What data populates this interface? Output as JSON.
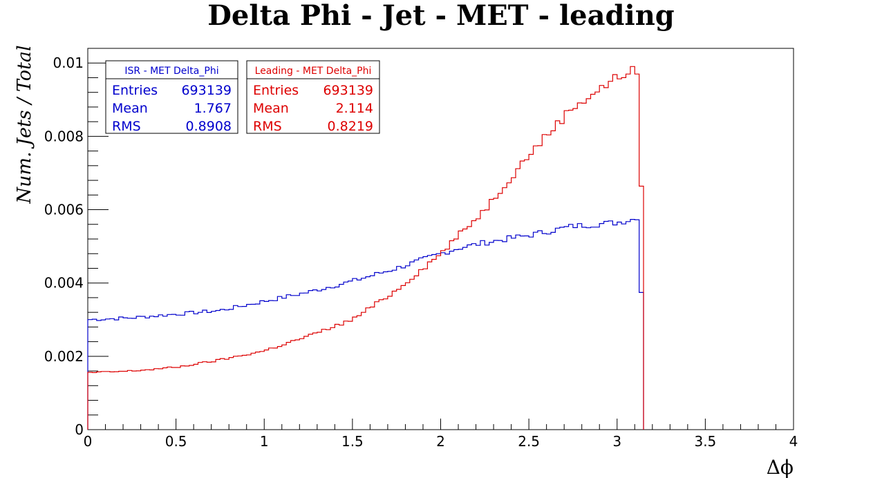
{
  "chart_data": {
    "type": "line",
    "title": "Delta Phi - Jet - MET - leading",
    "xlabel": "Δϕ",
    "ylabel": "Num. Jets / Total",
    "xlim": [
      0,
      4
    ],
    "ylim": [
      0,
      0.0104
    ],
    "x_ticks": [
      "0",
      "0.5",
      "1",
      "1.5",
      "2",
      "2.5",
      "3",
      "3.5",
      "4"
    ],
    "y_ticks": [
      "0",
      "0.002",
      "0.004",
      "0.006",
      "0.008",
      "0.01"
    ],
    "grid": false,
    "histogram": {
      "bin_width": 0.025,
      "x_end": 3.15
    },
    "series": [
      {
        "name": "ISR - MET Delta_Phi",
        "color": "#0000cc",
        "x": [
          0,
          0.25,
          0.5,
          0.75,
          1.0,
          1.25,
          1.5,
          1.75,
          2.0,
          2.1,
          2.25,
          2.5,
          2.75,
          3.0,
          3.1,
          3.125,
          3.14
        ],
        "values": [
          0.003,
          0.00305,
          0.00315,
          0.00325,
          0.0035,
          0.00375,
          0.00405,
          0.0044,
          0.0048,
          0.00495,
          0.0051,
          0.0053,
          0.00555,
          0.00565,
          0.00575,
          0.0057,
          0.00335
        ]
      },
      {
        "name": "Leading - MET Delta_Phi",
        "color": "#dd0000",
        "x": [
          0,
          0.25,
          0.5,
          0.75,
          1.0,
          1.25,
          1.5,
          1.75,
          2.0,
          2.25,
          2.5,
          2.75,
          3.0,
          3.05,
          3.1,
          3.125,
          3.14
        ],
        "values": [
          0.00155,
          0.0016,
          0.0017,
          0.0019,
          0.00215,
          0.00255,
          0.003,
          0.0038,
          0.0048,
          0.006,
          0.0075,
          0.0088,
          0.0096,
          0.00975,
          0.0098,
          0.0096,
          0.00605
        ]
      }
    ],
    "stats": [
      {
        "title": "ISR - MET Delta_Phi",
        "entries_label": "Entries",
        "entries": "693139",
        "mean_label": "Mean",
        "mean": "1.767",
        "rms_label": "RMS",
        "rms": "0.8908",
        "color": "#0000cc"
      },
      {
        "title": "Leading - MET Delta_Phi",
        "entries_label": "Entries",
        "entries": "693139",
        "mean_label": "Mean",
        "mean": "2.114",
        "rms_label": "RMS",
        "rms": "0.8219",
        "color": "#dd0000"
      }
    ]
  }
}
